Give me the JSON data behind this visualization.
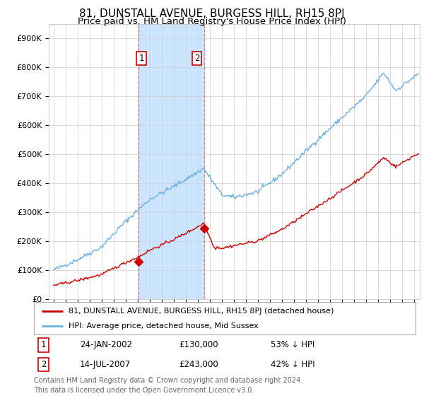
{
  "title": "81, DUNSTALL AVENUE, BURGESS HILL, RH15 8PJ",
  "subtitle": "Price paid vs. HM Land Registry's House Price Index (HPI)",
  "ylim": [
    0,
    950000
  ],
  "yticks": [
    0,
    100000,
    200000,
    300000,
    400000,
    500000,
    600000,
    700000,
    800000,
    900000
  ],
  "ytick_labels": [
    "£0",
    "£100K",
    "£200K",
    "£300K",
    "£400K",
    "£500K",
    "£600K",
    "£700K",
    "£800K",
    "£900K"
  ],
  "sale1_date_num": 2002.07,
  "sale1_price": 130000,
  "sale1_label": "1",
  "sale1_date_str": "24-JAN-2002",
  "sale1_price_str": "£130,000",
  "sale1_hpi_str": "53% ↓ HPI",
  "sale2_date_num": 2007.54,
  "sale2_price": 243000,
  "sale2_label": "2",
  "sale2_date_str": "14-JUL-2007",
  "sale2_price_str": "£243,000",
  "sale2_hpi_str": "42% ↓ HPI",
  "shaded_color": "#cce5ff",
  "line_color_hpi": "#6ab0e0",
  "line_color_sale": "#cc0000",
  "marker_color": "#cc0000",
  "legend_sale_label": "81, DUNSTALL AVENUE, BURGESS HILL, RH15 8PJ (detached house)",
  "legend_hpi_label": "HPI: Average price, detached house, Mid Sussex",
  "footer": "Contains HM Land Registry data © Crown copyright and database right 2024.\nThis data is licensed under the Open Government Licence v3.0.",
  "background_color": "#ffffff",
  "grid_color": "#cccccc",
  "title_fontsize": 11,
  "subtitle_fontsize": 9.5,
  "tick_fontsize": 8,
  "legend_fontsize": 8,
  "footer_fontsize": 7
}
